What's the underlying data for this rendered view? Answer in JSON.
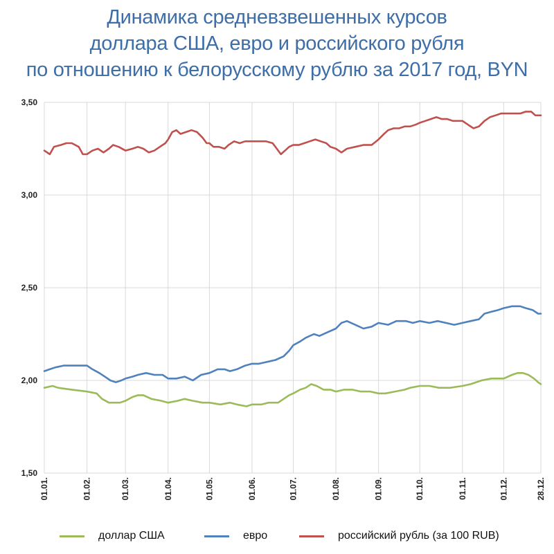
{
  "chart_data": {
    "type": "line",
    "title_lines": [
      "Динамика средневзвешенных курсов",
      "доллара США, евро и российского рубля",
      "по отношению к белорусскому рублю за 2017 год, BYN"
    ],
    "xlabel": "",
    "ylabel": "",
    "ylim": [
      1.5,
      3.5
    ],
    "yticks": [
      "3,50",
      "3,00",
      "2,50",
      "2,00",
      "1,50"
    ],
    "ytick_values": [
      3.5,
      3.0,
      2.5,
      2.0,
      1.5
    ],
    "x_tick_labels": [
      "01.01.",
      "01.02.",
      "01.03.",
      "01.04.",
      "01.05.",
      "01.06.",
      "01.07.",
      "01.08.",
      "01.09.",
      "01.10.",
      "01.11.",
      "01.12.",
      "28.12."
    ],
    "x_tick_days": [
      0,
      31,
      59,
      90,
      120,
      151,
      181,
      212,
      243,
      273,
      304,
      334,
      361
    ],
    "x_range_days": [
      0,
      361
    ],
    "grid": true,
    "legend_position": "bottom",
    "series": [
      {
        "name": "доллар США",
        "color": "#9bbb59",
        "points": [
          [
            0,
            1.96
          ],
          [
            6,
            1.97
          ],
          [
            10,
            1.96
          ],
          [
            20,
            1.95
          ],
          [
            31,
            1.94
          ],
          [
            38,
            1.93
          ],
          [
            42,
            1.9
          ],
          [
            47,
            1.88
          ],
          [
            55,
            1.88
          ],
          [
            59,
            1.89
          ],
          [
            64,
            1.91
          ],
          [
            68,
            1.92
          ],
          [
            72,
            1.92
          ],
          [
            78,
            1.9
          ],
          [
            85,
            1.89
          ],
          [
            90,
            1.88
          ],
          [
            97,
            1.89
          ],
          [
            102,
            1.9
          ],
          [
            108,
            1.89
          ],
          [
            115,
            1.88
          ],
          [
            120,
            1.88
          ],
          [
            128,
            1.87
          ],
          [
            135,
            1.88
          ],
          [
            140,
            1.87
          ],
          [
            147,
            1.86
          ],
          [
            151,
            1.87
          ],
          [
            158,
            1.87
          ],
          [
            163,
            1.88
          ],
          [
            170,
            1.88
          ],
          [
            178,
            1.92
          ],
          [
            181,
            1.93
          ],
          [
            186,
            1.95
          ],
          [
            190,
            1.96
          ],
          [
            194,
            1.98
          ],
          [
            198,
            1.97
          ],
          [
            203,
            1.95
          ],
          [
            208,
            1.95
          ],
          [
            212,
            1.94
          ],
          [
            218,
            1.95
          ],
          [
            224,
            1.95
          ],
          [
            230,
            1.94
          ],
          [
            237,
            1.94
          ],
          [
            243,
            1.93
          ],
          [
            248,
            1.93
          ],
          [
            255,
            1.94
          ],
          [
            262,
            1.95
          ],
          [
            266,
            1.96
          ],
          [
            273,
            1.97
          ],
          [
            280,
            1.97
          ],
          [
            287,
            1.96
          ],
          [
            295,
            1.96
          ],
          [
            304,
            1.97
          ],
          [
            310,
            1.98
          ],
          [
            318,
            2.0
          ],
          [
            325,
            2.01
          ],
          [
            330,
            2.01
          ],
          [
            334,
            2.01
          ],
          [
            340,
            2.03
          ],
          [
            344,
            2.04
          ],
          [
            348,
            2.04
          ],
          [
            352,
            2.03
          ],
          [
            356,
            2.01
          ],
          [
            359,
            1.99
          ],
          [
            361,
            1.98
          ]
        ]
      },
      {
        "name": "евро",
        "color": "#4f81bd",
        "points": [
          [
            0,
            2.05
          ],
          [
            4,
            2.06
          ],
          [
            8,
            2.07
          ],
          [
            14,
            2.08
          ],
          [
            20,
            2.08
          ],
          [
            25,
            2.08
          ],
          [
            31,
            2.08
          ],
          [
            35,
            2.06
          ],
          [
            40,
            2.04
          ],
          [
            44,
            2.02
          ],
          [
            48,
            2.0
          ],
          [
            52,
            1.99
          ],
          [
            56,
            2.0
          ],
          [
            59,
            2.01
          ],
          [
            64,
            2.02
          ],
          [
            68,
            2.03
          ],
          [
            74,
            2.04
          ],
          [
            80,
            2.03
          ],
          [
            86,
            2.03
          ],
          [
            90,
            2.01
          ],
          [
            96,
            2.01
          ],
          [
            102,
            2.02
          ],
          [
            108,
            2.0
          ],
          [
            114,
            2.03
          ],
          [
            120,
            2.04
          ],
          [
            126,
            2.06
          ],
          [
            131,
            2.06
          ],
          [
            135,
            2.05
          ],
          [
            140,
            2.06
          ],
          [
            146,
            2.08
          ],
          [
            151,
            2.09
          ],
          [
            156,
            2.09
          ],
          [
            162,
            2.1
          ],
          [
            168,
            2.11
          ],
          [
            174,
            2.13
          ],
          [
            178,
            2.16
          ],
          [
            181,
            2.19
          ],
          [
            186,
            2.21
          ],
          [
            190,
            2.23
          ],
          [
            196,
            2.25
          ],
          [
            200,
            2.24
          ],
          [
            206,
            2.26
          ],
          [
            212,
            2.28
          ],
          [
            216,
            2.31
          ],
          [
            220,
            2.32
          ],
          [
            226,
            2.3
          ],
          [
            232,
            2.28
          ],
          [
            238,
            2.29
          ],
          [
            243,
            2.31
          ],
          [
            250,
            2.3
          ],
          [
            256,
            2.32
          ],
          [
            263,
            2.32
          ],
          [
            268,
            2.31
          ],
          [
            273,
            2.32
          ],
          [
            280,
            2.31
          ],
          [
            286,
            2.32
          ],
          [
            292,
            2.31
          ],
          [
            298,
            2.3
          ],
          [
            304,
            2.31
          ],
          [
            310,
            2.32
          ],
          [
            316,
            2.33
          ],
          [
            320,
            2.36
          ],
          [
            325,
            2.37
          ],
          [
            330,
            2.38
          ],
          [
            334,
            2.39
          ],
          [
            340,
            2.4
          ],
          [
            346,
            2.4
          ],
          [
            350,
            2.39
          ],
          [
            355,
            2.38
          ],
          [
            359,
            2.36
          ],
          [
            361,
            2.36
          ]
        ]
      },
      {
        "name": "российский рубль (за 100 RUB)",
        "color": "#c0504d",
        "points": [
          [
            0,
            3.24
          ],
          [
            4,
            3.22
          ],
          [
            7,
            3.26
          ],
          [
            12,
            3.27
          ],
          [
            16,
            3.28
          ],
          [
            20,
            3.28
          ],
          [
            25,
            3.26
          ],
          [
            28,
            3.22
          ],
          [
            31,
            3.22
          ],
          [
            35,
            3.24
          ],
          [
            39,
            3.25
          ],
          [
            43,
            3.23
          ],
          [
            47,
            3.25
          ],
          [
            50,
            3.27
          ],
          [
            54,
            3.26
          ],
          [
            59,
            3.24
          ],
          [
            64,
            3.25
          ],
          [
            68,
            3.26
          ],
          [
            72,
            3.25
          ],
          [
            76,
            3.23
          ],
          [
            80,
            3.24
          ],
          [
            84,
            3.26
          ],
          [
            88,
            3.28
          ],
          [
            90,
            3.3
          ],
          [
            93,
            3.34
          ],
          [
            96,
            3.35
          ],
          [
            99,
            3.33
          ],
          [
            103,
            3.34
          ],
          [
            107,
            3.35
          ],
          [
            111,
            3.34
          ],
          [
            115,
            3.31
          ],
          [
            118,
            3.28
          ],
          [
            120,
            3.28
          ],
          [
            123,
            3.26
          ],
          [
            127,
            3.26
          ],
          [
            131,
            3.25
          ],
          [
            134,
            3.27
          ],
          [
            138,
            3.29
          ],
          [
            142,
            3.28
          ],
          [
            146,
            3.29
          ],
          [
            151,
            3.29
          ],
          [
            156,
            3.29
          ],
          [
            161,
            3.29
          ],
          [
            166,
            3.28
          ],
          [
            169,
            3.25
          ],
          [
            172,
            3.22
          ],
          [
            175,
            3.24
          ],
          [
            178,
            3.26
          ],
          [
            181,
            3.27
          ],
          [
            185,
            3.27
          ],
          [
            189,
            3.28
          ],
          [
            193,
            3.29
          ],
          [
            197,
            3.3
          ],
          [
            201,
            3.29
          ],
          [
            205,
            3.28
          ],
          [
            208,
            3.26
          ],
          [
            212,
            3.25
          ],
          [
            216,
            3.23
          ],
          [
            220,
            3.25
          ],
          [
            226,
            3.26
          ],
          [
            232,
            3.27
          ],
          [
            238,
            3.27
          ],
          [
            243,
            3.3
          ],
          [
            247,
            3.33
          ],
          [
            250,
            3.35
          ],
          [
            254,
            3.36
          ],
          [
            258,
            3.36
          ],
          [
            262,
            3.37
          ],
          [
            266,
            3.37
          ],
          [
            270,
            3.38
          ],
          [
            273,
            3.39
          ],
          [
            277,
            3.4
          ],
          [
            281,
            3.41
          ],
          [
            285,
            3.42
          ],
          [
            289,
            3.41
          ],
          [
            293,
            3.41
          ],
          [
            297,
            3.4
          ],
          [
            301,
            3.4
          ],
          [
            304,
            3.4
          ],
          [
            308,
            3.38
          ],
          [
            312,
            3.36
          ],
          [
            316,
            3.37
          ],
          [
            320,
            3.4
          ],
          [
            324,
            3.42
          ],
          [
            328,
            3.43
          ],
          [
            332,
            3.44
          ],
          [
            334,
            3.44
          ],
          [
            338,
            3.44
          ],
          [
            342,
            3.44
          ],
          [
            346,
            3.44
          ],
          [
            350,
            3.45
          ],
          [
            354,
            3.45
          ],
          [
            357,
            3.43
          ],
          [
            361,
            3.43
          ]
        ]
      }
    ]
  }
}
